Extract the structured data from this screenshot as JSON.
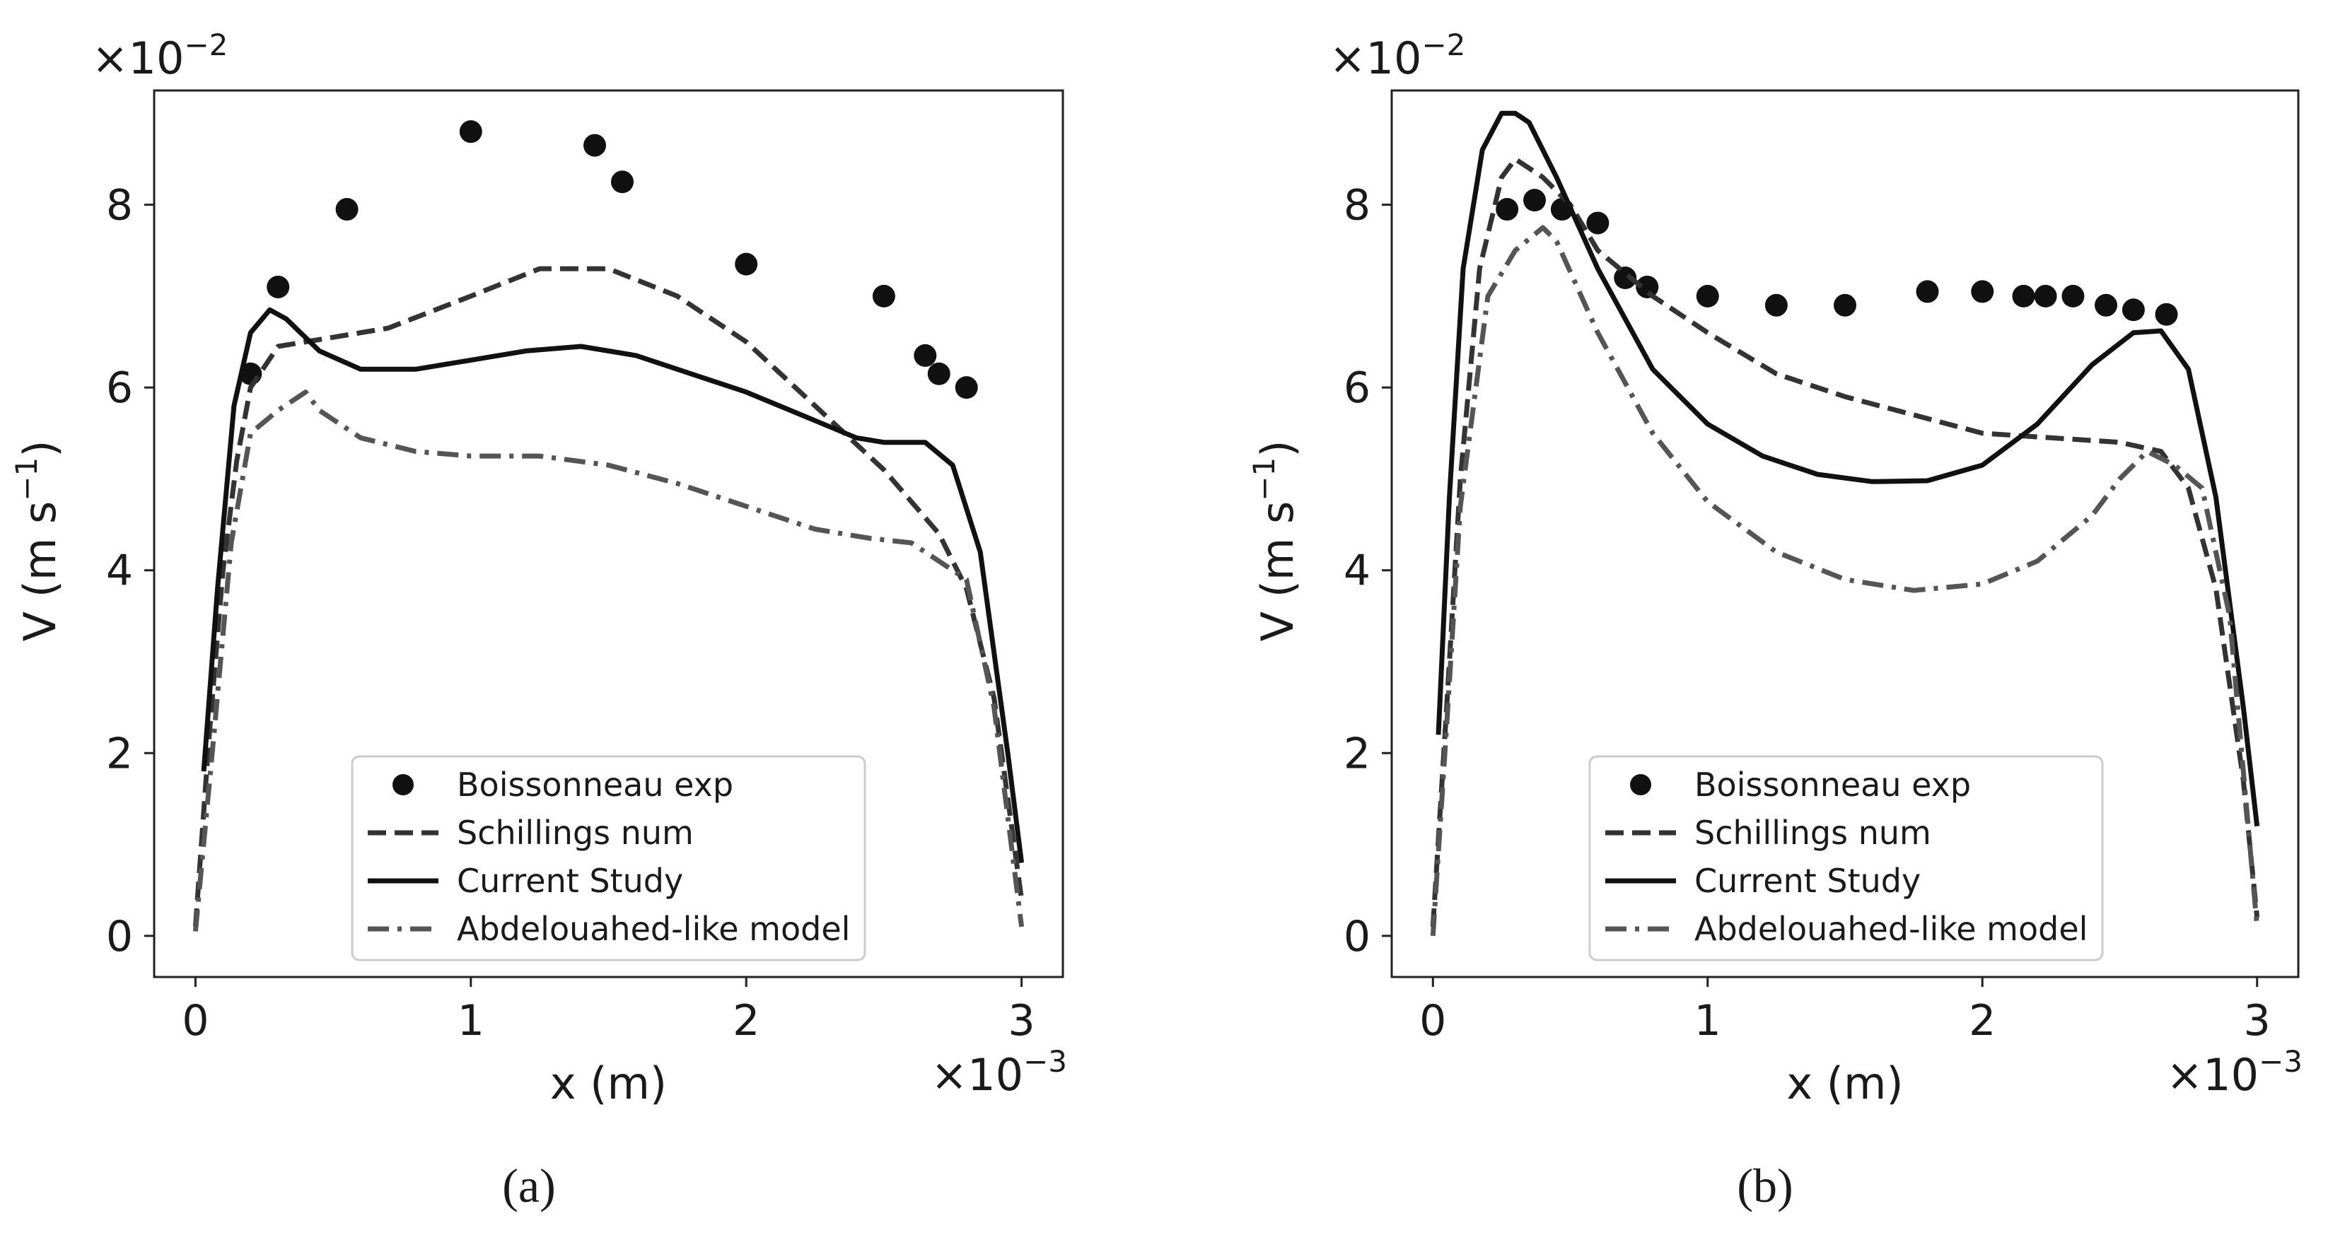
{
  "chart_data": [
    {
      "type": "line",
      "panel_label": "(a)",
      "xlabel": "x (m)",
      "ylabel": "V (m s",
      "ylabel_exp": "−1",
      "ylabel_close": ")",
      "x_multiplier": "×10",
      "x_multiplier_exp": "−3",
      "y_multiplier": "×10",
      "y_multiplier_exp": "−2",
      "xlim": [
        -0.15,
        3.15
      ],
      "ylim": [
        -0.45,
        9.25
      ],
      "xticks": [
        0,
        1,
        2,
        3
      ],
      "yticks": [
        0,
        2,
        4,
        6,
        8
      ],
      "legend_position": "lower-center",
      "series": [
        {
          "name": "Boissonneau exp",
          "style": "markers",
          "x": [
            0.2,
            0.3,
            0.55,
            1.0,
            1.45,
            1.55,
            2.0,
            2.5,
            2.65,
            2.7,
            2.8
          ],
          "y": [
            6.15,
            7.1,
            7.95,
            8.8,
            8.65,
            8.25,
            7.35,
            7.0,
            6.35,
            6.15,
            6.0
          ]
        },
        {
          "name": "Schillings num",
          "style": "dashed",
          "x": [
            0.0,
            0.05,
            0.1,
            0.15,
            0.2,
            0.3,
            0.5,
            0.7,
            1.0,
            1.25,
            1.5,
            1.75,
            2.0,
            2.25,
            2.5,
            2.7,
            2.8,
            2.9,
            3.0
          ],
          "y": [
            0.1,
            2.2,
            4.0,
            5.2,
            6.0,
            6.45,
            6.55,
            6.65,
            7.0,
            7.3,
            7.3,
            7.0,
            6.5,
            5.8,
            5.1,
            4.4,
            3.8,
            2.6,
            0.4
          ]
        },
        {
          "name": "Current Study",
          "style": "solid",
          "x": [
            0.03,
            0.08,
            0.14,
            0.2,
            0.27,
            0.33,
            0.45,
            0.6,
            0.8,
            1.0,
            1.2,
            1.4,
            1.6,
            1.8,
            2.0,
            2.2,
            2.4,
            2.5,
            2.65,
            2.75,
            2.85,
            2.95,
            3.0
          ],
          "y": [
            1.8,
            3.8,
            5.8,
            6.6,
            6.85,
            6.75,
            6.4,
            6.2,
            6.2,
            6.3,
            6.4,
            6.45,
            6.35,
            6.15,
            5.95,
            5.7,
            5.45,
            5.4,
            5.4,
            5.15,
            4.2,
            2.0,
            0.8
          ]
        },
        {
          "name": "Abdelouahed-like model",
          "style": "dashdot",
          "x": [
            0.0,
            0.07,
            0.13,
            0.2,
            0.3,
            0.4,
            0.45,
            0.6,
            0.8,
            1.0,
            1.25,
            1.5,
            1.75,
            2.0,
            2.25,
            2.45,
            2.6,
            2.8,
            2.9,
            3.0
          ],
          "y": [
            0.05,
            2.3,
            4.3,
            5.5,
            5.75,
            5.95,
            5.75,
            5.45,
            5.3,
            5.25,
            5.25,
            5.15,
            4.95,
            4.7,
            4.45,
            4.35,
            4.3,
            3.9,
            2.5,
            0.1
          ]
        }
      ]
    },
    {
      "type": "line",
      "panel_label": "(b)",
      "xlabel": "x (m)",
      "ylabel": "V (m s",
      "ylabel_exp": "−1",
      "ylabel_close": ")",
      "x_multiplier": "×10",
      "x_multiplier_exp": "−3",
      "y_multiplier": "×10",
      "y_multiplier_exp": "−2",
      "xlim": [
        -0.15,
        3.15
      ],
      "ylim": [
        -0.45,
        9.25
      ],
      "xticks": [
        0,
        1,
        2,
        3
      ],
      "yticks": [
        0,
        2,
        4,
        6,
        8
      ],
      "legend_position": "lower-center",
      "series": [
        {
          "name": "Boissonneau exp",
          "style": "markers",
          "x": [
            0.27,
            0.37,
            0.47,
            0.6,
            0.7,
            0.78,
            1.0,
            1.25,
            1.5,
            1.8,
            2.0,
            2.15,
            2.23,
            2.33,
            2.45,
            2.55,
            2.67
          ],
          "y": [
            7.95,
            8.05,
            7.95,
            7.8,
            7.2,
            7.1,
            7.0,
            6.9,
            6.9,
            7.05,
            7.05,
            7.0,
            7.0,
            7.0,
            6.9,
            6.85,
            6.8
          ]
        },
        {
          "name": "Schillings num",
          "style": "dashed",
          "x": [
            0.0,
            0.05,
            0.1,
            0.17,
            0.25,
            0.3,
            0.4,
            0.5,
            0.6,
            0.8,
            1.0,
            1.25,
            1.5,
            1.75,
            2.0,
            2.25,
            2.5,
            2.65,
            2.75,
            2.85,
            2.95,
            3.0
          ],
          "y": [
            0.1,
            2.5,
            5.0,
            7.3,
            8.3,
            8.5,
            8.3,
            8.0,
            7.5,
            7.0,
            6.6,
            6.15,
            5.9,
            5.7,
            5.5,
            5.45,
            5.4,
            5.3,
            4.9,
            3.8,
            1.7,
            0.2
          ]
        },
        {
          "name": "Current Study",
          "style": "solid",
          "x": [
            0.02,
            0.06,
            0.11,
            0.18,
            0.25,
            0.3,
            0.35,
            0.45,
            0.6,
            0.8,
            1.0,
            1.2,
            1.4,
            1.6,
            1.8,
            2.0,
            2.2,
            2.4,
            2.55,
            2.65,
            2.75,
            2.85,
            2.95,
            3.0
          ],
          "y": [
            2.2,
            4.8,
            7.3,
            8.6,
            9.0,
            9.0,
            8.9,
            8.3,
            7.3,
            6.2,
            5.6,
            5.25,
            5.05,
            4.97,
            4.98,
            5.15,
            5.6,
            6.25,
            6.6,
            6.62,
            6.2,
            4.8,
            2.5,
            1.2
          ]
        },
        {
          "name": "Abdelouahed-like model",
          "style": "dashdot",
          "x": [
            0.0,
            0.05,
            0.1,
            0.2,
            0.3,
            0.4,
            0.45,
            0.6,
            0.8,
            1.0,
            1.25,
            1.5,
            1.75,
            2.0,
            2.2,
            2.4,
            2.5,
            2.6,
            2.7,
            2.8,
            2.9,
            3.0
          ],
          "y": [
            0.0,
            2.3,
            4.7,
            7.0,
            7.5,
            7.75,
            7.6,
            6.6,
            5.5,
            4.75,
            4.2,
            3.9,
            3.78,
            3.85,
            4.1,
            4.6,
            5.0,
            5.3,
            5.15,
            4.9,
            3.5,
            0.1
          ]
        }
      ]
    }
  ]
}
